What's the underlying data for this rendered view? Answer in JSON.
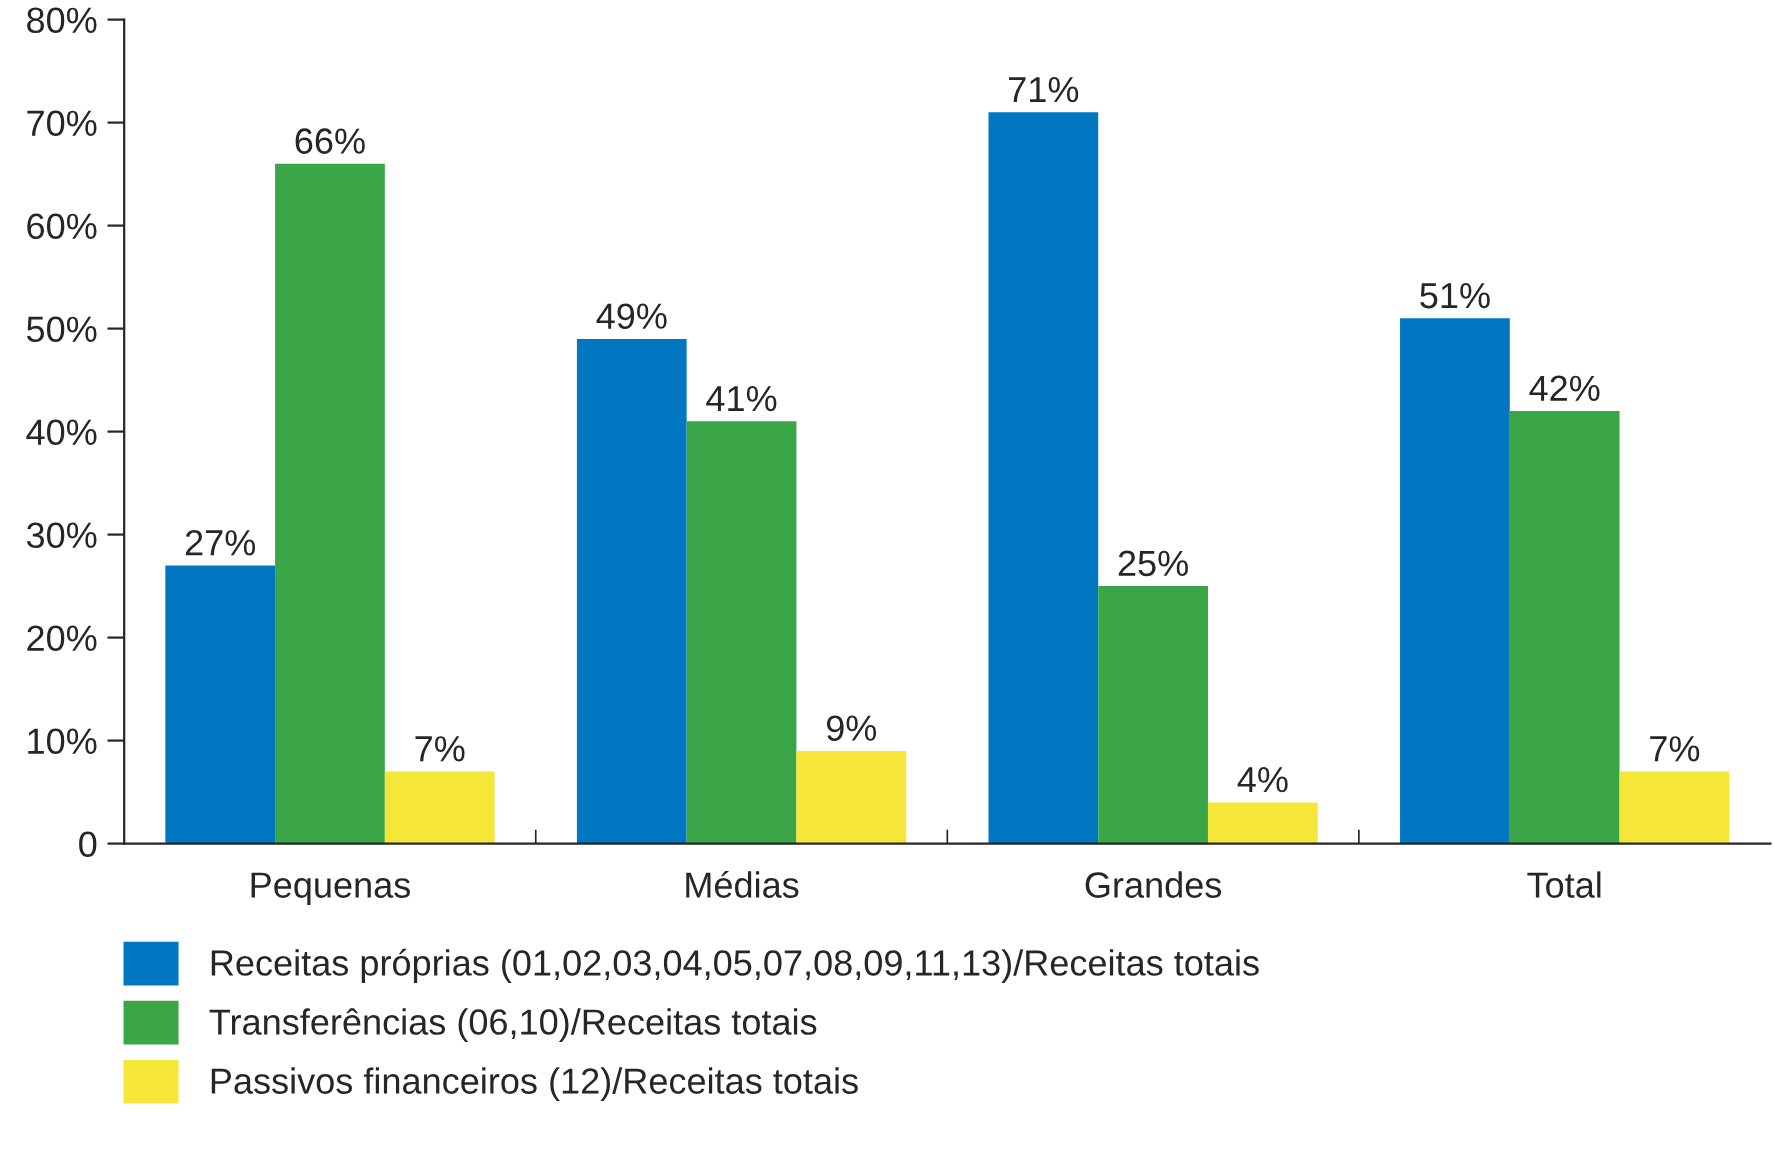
{
  "chart_data": {
    "type": "bar",
    "categories": [
      "Pequenas",
      "Médias",
      "Grandes",
      "Total"
    ],
    "series": [
      {
        "name": "Receitas próprias (01,02,03,04,05,07,08,09,11,13)/Receitas totais",
        "color": "#0077c0",
        "values": [
          27,
          49,
          71,
          51
        ]
      },
      {
        "name": "Transferências (06,10)/Receitas totais",
        "color": "#3aa648",
        "values": [
          66,
          41,
          25,
          42
        ]
      },
      {
        "name": "Passivos financeiros (12)/Receitas totais",
        "color": "#f5e637",
        "values": [
          7,
          9,
          4,
          7
        ]
      }
    ],
    "ylim": [
      0,
      80
    ],
    "yticks": [
      0,
      {
        "value": 10,
        "label": "10%"
      },
      {
        "value": 20,
        "label": "20%"
      },
      {
        "value": 30,
        "label": "30%"
      },
      {
        "value": 40,
        "label": "40%"
      },
      {
        "value": 50,
        "label": "50%"
      },
      {
        "value": 60,
        "label": "60%"
      },
      {
        "value": 70,
        "label": "70%"
      },
      {
        "value": 80,
        "label": "80%"
      }
    ],
    "value_labels": [
      [
        "27%",
        "49%",
        "71%",
        "51%"
      ],
      [
        "66%",
        "41%",
        "25%",
        "42%"
      ],
      [
        "7%",
        "9%",
        "4%",
        "7%"
      ]
    ],
    "grid": false,
    "legend": "bottom left"
  }
}
